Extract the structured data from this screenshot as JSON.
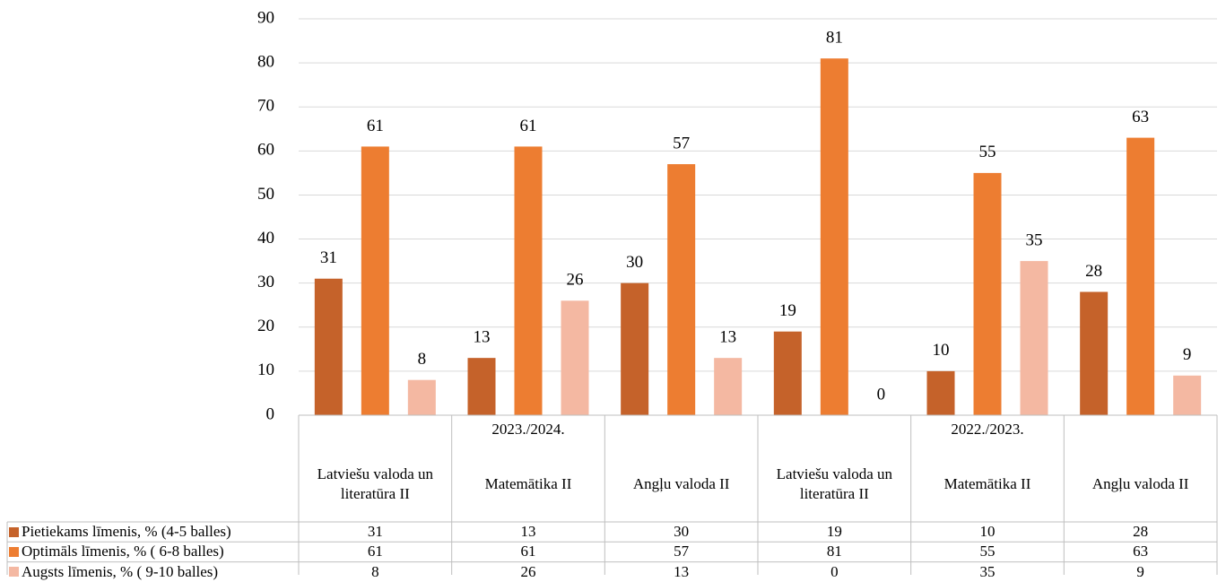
{
  "chart_data": {
    "type": "bar",
    "category_groups": [
      {
        "label": "2023./2024.",
        "count": 3
      },
      {
        "label": "2022./2023.",
        "count": 3
      }
    ],
    "categories": [
      "Latviešu valoda un literatūra II",
      "Matemātika II",
      "Angļu valoda II",
      "Latviešu valoda un literatūra II",
      "Matemātika II",
      "Angļu valoda II"
    ],
    "series": [
      {
        "name": "Pietiekams līmenis, % (4-5 balles)",
        "color": "#c5622a",
        "values": [
          31,
          13,
          30,
          19,
          10,
          28
        ]
      },
      {
        "name": "Optimāls līmenis, % ( 6-8 balles)",
        "color": "#ed7d31",
        "values": [
          61,
          61,
          57,
          81,
          55,
          63
        ]
      },
      {
        "name": "Augsts līmenis, % ( 9-10 balles)",
        "color": "#f4b8a2",
        "values": [
          8,
          26,
          13,
          0,
          35,
          9
        ]
      }
    ],
    "ylim": [
      0,
      90
    ],
    "yticks": [
      0,
      10,
      20,
      30,
      40,
      50,
      60,
      70,
      80,
      90
    ],
    "grid": true
  }
}
